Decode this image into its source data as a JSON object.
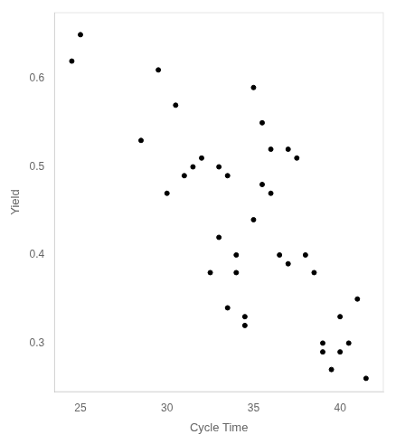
{
  "chart_data": {
    "type": "scatter",
    "x": [
      24.5,
      25.0,
      28.5,
      29.5,
      30.0,
      30.5,
      31.0,
      31.5,
      32.0,
      32.5,
      33.0,
      33.0,
      33.5,
      33.5,
      34.0,
      34.0,
      34.5,
      34.5,
      35.0,
      35.0,
      35.5,
      35.5,
      36.0,
      36.0,
      36.5,
      37.0,
      37.0,
      37.5,
      38.0,
      38.5,
      39.0,
      39.0,
      39.5,
      40.0,
      40.0,
      40.5,
      41.0,
      41.5
    ],
    "values": [
      0.62,
      0.65,
      0.53,
      0.61,
      0.47,
      0.57,
      0.49,
      0.5,
      0.51,
      0.38,
      0.42,
      0.5,
      0.34,
      0.49,
      0.4,
      0.38,
      0.33,
      0.32,
      0.44,
      0.59,
      0.48,
      0.55,
      0.52,
      0.47,
      0.4,
      0.39,
      0.52,
      0.51,
      0.4,
      0.38,
      0.3,
      0.29,
      0.27,
      0.29,
      0.33,
      0.3,
      0.35,
      0.26
    ],
    "xlabel": "Cycle Time",
    "ylabel": "Yield",
    "xlim": [
      23.5,
      42.5
    ],
    "ylim": [
      0.245,
      0.675
    ],
    "xticks": [
      25,
      30,
      35,
      40
    ],
    "yticks": [
      0.3,
      0.4,
      0.5,
      0.6
    ],
    "color": "black",
    "grid": false
  }
}
